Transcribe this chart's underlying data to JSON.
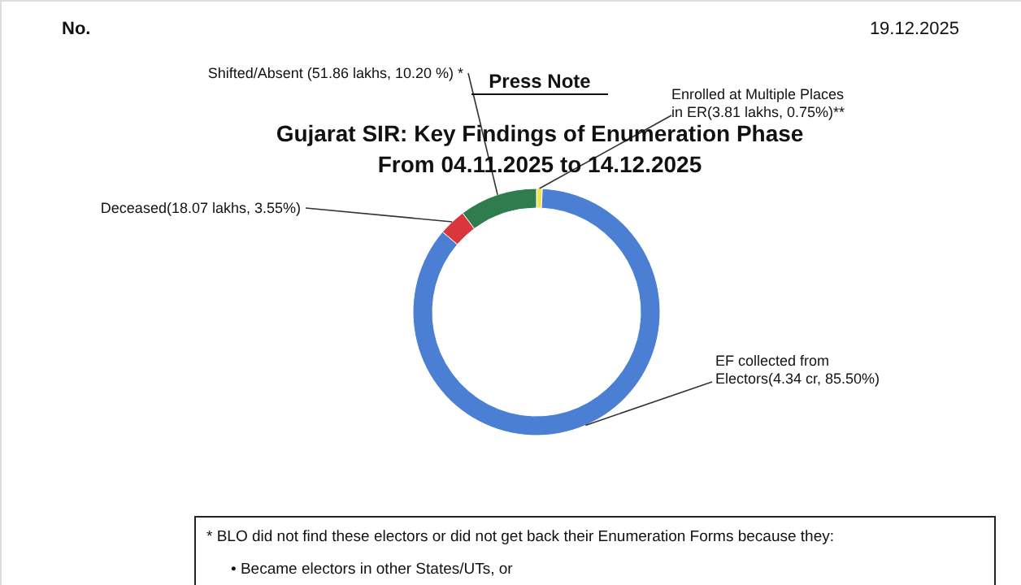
{
  "chart_data": {
    "type": "donut",
    "title": "Gujarat SIR: Key Findings of Enumeration Phase",
    "subtitle": "From 04.11.2025 to 14.12.2025",
    "categories": [
      "Enrolled at Multiple Places in ER(3.81 lakhs, 0.75%)**",
      "EF collected from Electors(4.34 cr, 85.50%)",
      "Deceased(18.07 lakhs, 3.55%)",
      "Shifted/Absent (51.86 lakhs, 10.20 %) *"
    ],
    "values": [
      0.75,
      85.5,
      3.55,
      10.2
    ],
    "colors": [
      "#f2e34c",
      "#4a7fd4",
      "#d9363e",
      "#2f7d4f"
    ],
    "annotations": [
      "No.",
      "19.12.2025",
      "Press Note",
      "* BLO did not find these electors or did not get back their Enumeration Forms because they:",
      "•     Became electors in other States/UTs, or"
    ]
  }
}
